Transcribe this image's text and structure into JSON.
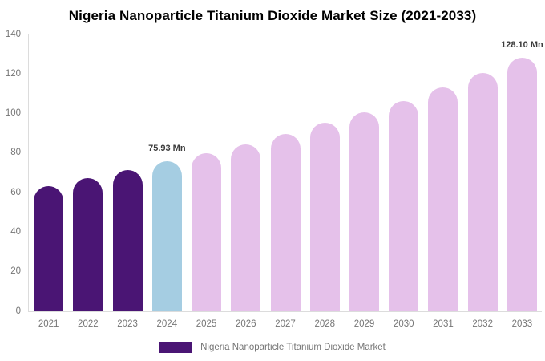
{
  "title": "Nigeria Nanoparticle Titanium Dioxide Market Size (2021-2033)",
  "legend": {
    "label": "Nigeria Nanoparticle Titanium Dioxide Market"
  },
  "colors": {
    "historical_bar": "#4a1574",
    "current_bar": "#a5cde2",
    "forecast_bar": "#e5c1ea",
    "axis_line": "#dcdcdc",
    "tick_label": "#757575",
    "annotation_text": "#3c3c3c",
    "title_text": "#000000"
  },
  "chart_data": {
    "type": "bar",
    "title": "Nigeria Nanoparticle Titanium Dioxide Market Size (2021-2033)",
    "series_name": "Nigeria Nanoparticle Titanium Dioxide Market",
    "unit": "Mn",
    "categories": [
      "2021",
      "2022",
      "2023",
      "2024",
      "2025",
      "2026",
      "2027",
      "2028",
      "2029",
      "2030",
      "2031",
      "2032",
      "2033"
    ],
    "values": [
      63.4,
      67.3,
      71.5,
      75.93,
      80.0,
      84.4,
      89.5,
      95.4,
      100.8,
      106.3,
      113.4,
      120.5,
      128.1
    ],
    "bar_segments": [
      "historical",
      "historical",
      "historical",
      "current",
      "forecast",
      "forecast",
      "forecast",
      "forecast",
      "forecast",
      "forecast",
      "forecast",
      "forecast",
      "forecast"
    ],
    "segment_colors": {
      "historical": "#4a1574",
      "current": "#a5cde2",
      "forecast": "#e5c1ea"
    },
    "annotations": [
      {
        "category": "2024",
        "text": "75.93 Mn"
      },
      {
        "category": "2033",
        "text": "128.10 Mn"
      }
    ],
    "xlabel": "",
    "ylabel": "",
    "ylim": [
      0,
      140
    ],
    "yticks": [
      0,
      20,
      40,
      60,
      80,
      100,
      120,
      140
    ],
    "grid": false,
    "legend_position": "bottom"
  }
}
